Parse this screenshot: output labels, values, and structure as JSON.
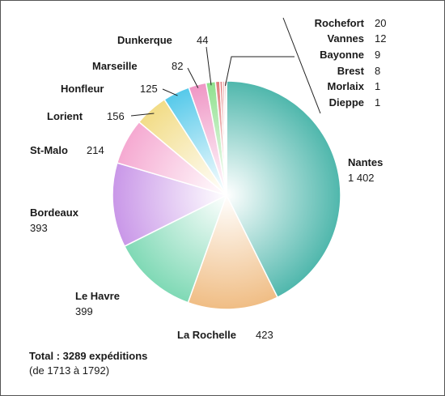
{
  "chart_data": {
    "type": "pie",
    "slices": [
      {
        "label": "Nantes",
        "value_label": "1 402",
        "value": 1402,
        "color": "#4fb7ac"
      },
      {
        "label": "La Rochelle",
        "value_label": "423",
        "value": 423,
        "color": "#f0bd84"
      },
      {
        "label": "Le Havre",
        "value_label": "399",
        "value": 399,
        "color": "#7fd9b5"
      },
      {
        "label": "Bordeaux",
        "value_label": "393",
        "value": 393,
        "color": "#c997e8"
      },
      {
        "label": "St-Malo",
        "value_label": "214",
        "value": 214,
        "color": "#f5a9d1"
      },
      {
        "label": "Lorient",
        "value_label": "156",
        "value": 156,
        "color": "#f2dc86"
      },
      {
        "label": "Honfleur",
        "value_label": "125",
        "value": 125,
        "color": "#55c9ea"
      },
      {
        "label": "Marseille",
        "value_label": "82",
        "value": 82,
        "color": "#ef96c5"
      },
      {
        "label": "Dunkerque",
        "value_label": "44",
        "value": 44,
        "color": "#8fe08d"
      },
      {
        "label": "Rochefort",
        "value_label": "20",
        "value": 20,
        "color": "#e07b7b"
      },
      {
        "label": "Vannes",
        "value_label": "12",
        "value": 12,
        "color": "#e07b7b"
      },
      {
        "label": "Bayonne",
        "value_label": "9",
        "value": 9,
        "color": "#e07b7b"
      },
      {
        "label": "Brest",
        "value_label": "8",
        "value": 8,
        "color": "#e07b7b"
      },
      {
        "label": "Morlaix",
        "value_label": "1",
        "value": 1,
        "color": "#e07b7b"
      },
      {
        "label": "Dieppe",
        "value_label": "1",
        "value": 1,
        "color": "#e07b7b"
      }
    ],
    "footnote": {
      "total": "Total : 3289 expéditions",
      "period": "(de 1713 à 1792)"
    }
  }
}
